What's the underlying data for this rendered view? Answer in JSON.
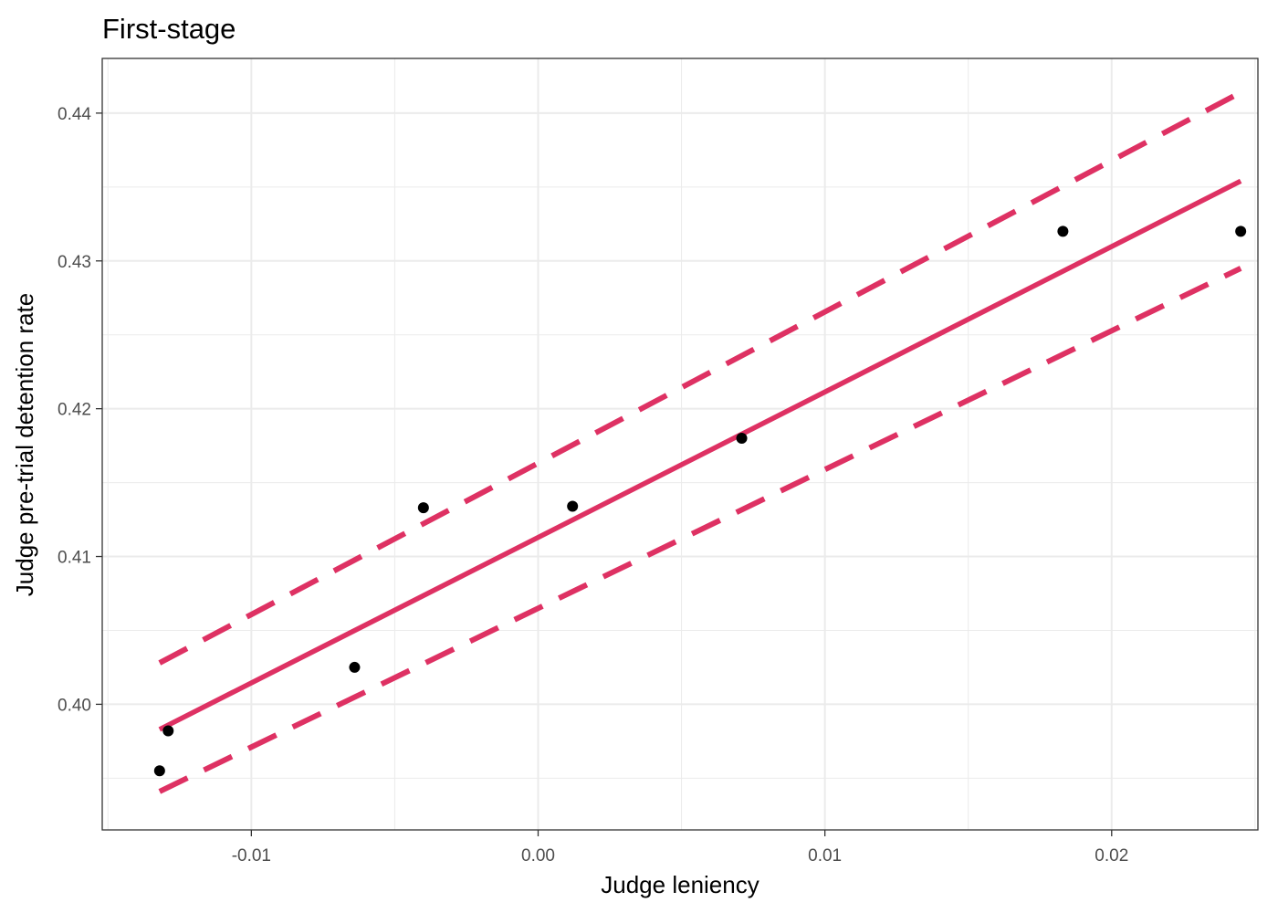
{
  "chart_data": {
    "type": "scatter",
    "title": "First-stage",
    "xlabel": "Judge leniency",
    "ylabel": "Judge pre-trial detention rate",
    "xlim": [
      -0.0152,
      0.0251
    ],
    "ylim": [
      0.3915,
      0.4437
    ],
    "x_ticks": [
      -0.01,
      0.0,
      0.01,
      0.02
    ],
    "x_tick_labels": [
      "-0.01",
      "0.00",
      "0.01",
      "0.02"
    ],
    "y_ticks": [
      0.4,
      0.41,
      0.42,
      0.43,
      0.44
    ],
    "y_tick_labels": [
      "0.40",
      "0.41",
      "0.42",
      "0.43",
      "0.44"
    ],
    "grid": true,
    "points": [
      {
        "x": -0.0132,
        "y": 0.3955
      },
      {
        "x": -0.0129,
        "y": 0.3982
      },
      {
        "x": -0.0064,
        "y": 0.4025
      },
      {
        "x": -0.004,
        "y": 0.4133
      },
      {
        "x": 0.0012,
        "y": 0.4134
      },
      {
        "x": 0.0071,
        "y": 0.418
      },
      {
        "x": 0.0183,
        "y": 0.432
      },
      {
        "x": 0.0245,
        "y": 0.432
      }
    ],
    "fit_line": {
      "x": [
        -0.0132,
        0.0245
      ],
      "y": [
        0.3983,
        0.4354
      ]
    },
    "ci_upper": {
      "x": [
        -0.0132,
        0.0245
      ],
      "y": [
        0.4028,
        0.4414
      ]
    },
    "ci_lower": {
      "x": [
        -0.0132,
        0.0245
      ],
      "y": [
        0.3941,
        0.4295
      ]
    },
    "colors": {
      "line": "#DE3163",
      "points": "#000000"
    }
  }
}
